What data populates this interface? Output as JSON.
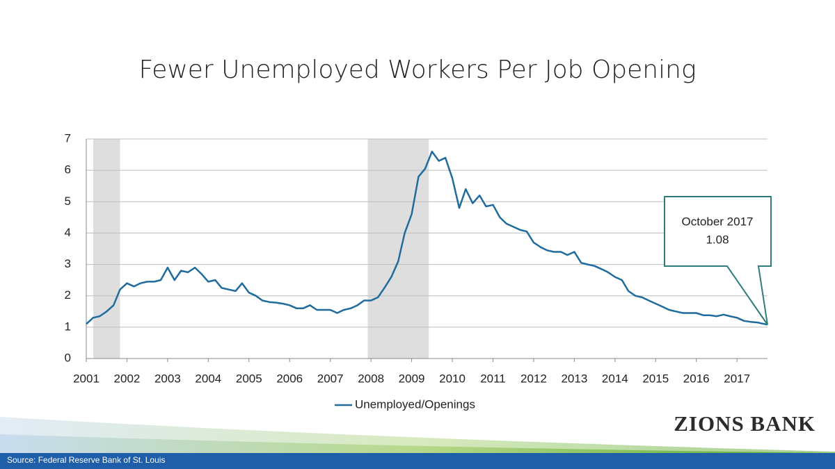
{
  "chart_data": {
    "type": "line",
    "title": "Fewer Unemployed Workers Per Job Opening",
    "x": [
      2001,
      2001.17,
      2001.33,
      2001.5,
      2001.67,
      2001.83,
      2002,
      2002.17,
      2002.33,
      2002.5,
      2002.67,
      2002.83,
      2003,
      2003.17,
      2003.33,
      2003.5,
      2003.67,
      2003.83,
      2004,
      2004.17,
      2004.33,
      2004.5,
      2004.67,
      2004.83,
      2005,
      2005.17,
      2005.33,
      2005.5,
      2005.67,
      2005.83,
      2006,
      2006.17,
      2006.33,
      2006.5,
      2006.67,
      2006.83,
      2007,
      2007.17,
      2007.33,
      2007.5,
      2007.67,
      2007.83,
      2008,
      2008.17,
      2008.33,
      2008.5,
      2008.67,
      2008.83,
      2009,
      2009.17,
      2009.33,
      2009.5,
      2009.67,
      2009.83,
      2010,
      2010.17,
      2010.33,
      2010.5,
      2010.67,
      2010.83,
      2011,
      2011.17,
      2011.33,
      2011.5,
      2011.67,
      2011.83,
      2012,
      2012.17,
      2012.33,
      2012.5,
      2012.67,
      2012.83,
      2013,
      2013.17,
      2013.33,
      2013.5,
      2013.67,
      2013.83,
      2014,
      2014.17,
      2014.33,
      2014.5,
      2014.67,
      2014.83,
      2015,
      2015.17,
      2015.33,
      2015.5,
      2015.67,
      2015.83,
      2016,
      2016.17,
      2016.33,
      2016.5,
      2016.67,
      2016.83,
      2017,
      2017.17,
      2017.33,
      2017.5,
      2017.67,
      2017.75
    ],
    "series": [
      {
        "name": "Unemployed/Openings",
        "color": "#1f6b9d",
        "values": [
          1.1,
          1.3,
          1.35,
          1.5,
          1.7,
          2.2,
          2.4,
          2.3,
          2.4,
          2.45,
          2.45,
          2.5,
          2.9,
          2.5,
          2.8,
          2.75,
          2.9,
          2.7,
          2.45,
          2.5,
          2.25,
          2.2,
          2.15,
          2.4,
          2.1,
          2.0,
          1.85,
          1.8,
          1.78,
          1.75,
          1.7,
          1.6,
          1.6,
          1.7,
          1.55,
          1.55,
          1.55,
          1.45,
          1.55,
          1.6,
          1.7,
          1.85,
          1.85,
          1.95,
          2.25,
          2.6,
          3.1,
          4.0,
          4.6,
          5.8,
          6.05,
          6.6,
          6.3,
          6.4,
          5.75,
          4.8,
          5.4,
          4.95,
          5.2,
          4.85,
          4.9,
          4.5,
          4.3,
          4.2,
          4.1,
          4.05,
          3.7,
          3.55,
          3.45,
          3.4,
          3.4,
          3.3,
          3.4,
          3.05,
          3.0,
          2.95,
          2.85,
          2.75,
          2.6,
          2.5,
          2.15,
          2.0,
          1.95,
          1.85,
          1.75,
          1.65,
          1.55,
          1.5,
          1.45,
          1.45,
          1.45,
          1.38,
          1.38,
          1.35,
          1.4,
          1.35,
          1.3,
          1.2,
          1.17,
          1.15,
          1.1,
          1.08
        ]
      }
    ],
    "recessions": [
      [
        2001.17,
        2001.83
      ],
      [
        2007.92,
        2009.42
      ]
    ],
    "xlim": [
      2001,
      2017.75
    ],
    "xticks": [
      2001,
      2002,
      2003,
      2004,
      2005,
      2006,
      2007,
      2008,
      2009,
      2010,
      2011,
      2012,
      2013,
      2014,
      2015,
      2016,
      2017
    ],
    "ylim": [
      0,
      7
    ],
    "yticks": [
      0,
      1,
      2,
      3,
      4,
      5,
      6,
      7
    ],
    "grid": true,
    "legend": "bottom",
    "annotation": {
      "text": "October 2017",
      "value": 1.08,
      "x": 2017.75
    }
  },
  "footer": {
    "source": "Source: Federal Reserve Bank of St. Louis",
    "logo": "ZIONS BANK"
  }
}
